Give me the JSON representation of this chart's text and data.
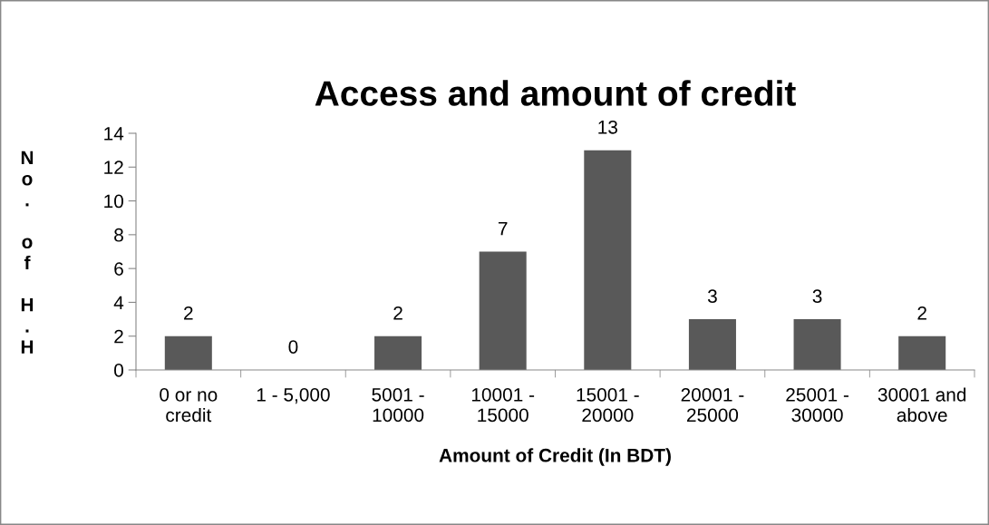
{
  "chart_data": {
    "type": "bar",
    "title": "Access and amount of credit",
    "xlabel": "Amount of Credit (In BDT)",
    "ylabel": "No. of H.H",
    "categories": [
      "0 or no\ncredit",
      "1 - 5,000",
      "5001 -\n10000",
      "10001 -\n15000",
      "15001 -\n20000",
      "20001 -\n25000",
      "25001 -\n30000",
      "30001 and\nabove"
    ],
    "values": [
      2,
      0,
      2,
      7,
      13,
      3,
      3,
      2
    ],
    "color": "#595959",
    "ylim": [
      0,
      14
    ],
    "yticks": [
      0,
      2,
      4,
      6,
      8,
      10,
      12,
      14
    ],
    "grid": false,
    "data_labels": true
  }
}
